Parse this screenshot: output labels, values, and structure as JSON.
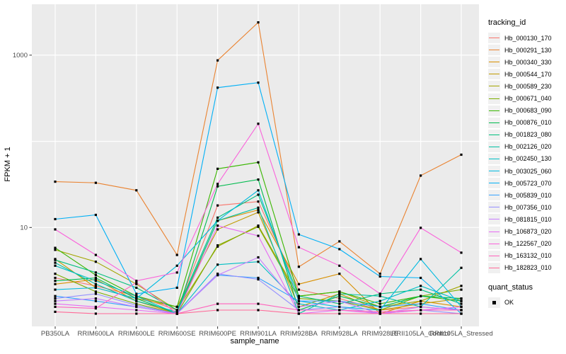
{
  "colors": {
    "panel_bg": "#EBEBEB",
    "grid": "#FFFFFF",
    "tick_text": "#4D4D4D",
    "tick_mark": "#333333",
    "point": "#000000"
  },
  "chart_data": {
    "type": "line",
    "title": "",
    "xlabel": "sample_name",
    "ylabel": "FPKM + 1",
    "y_scale": "log10",
    "ylim": [
      1,
      2600
    ],
    "grid": "on",
    "legend_position": "right",
    "y_tick_labels": [
      "1000",
      "10"
    ],
    "y_tick_values": [
      1000,
      10
    ],
    "y_gridline_values": [
      10,
      100,
      1000
    ],
    "legend_title": "tracking_id",
    "quant_legend": {
      "title": "quant_status",
      "items": [
        {
          "label": "OK"
        }
      ]
    },
    "categories": [
      "PB350LA",
      "RRIM600LA",
      "RRIM600LE",
      "RRIM600SE",
      "RRIM600PE",
      "RRIM901LA",
      "RRIM928BA",
      "RRIM928LA",
      "RRIM928LE",
      "RRII105LA_Control",
      "RRII105LA_Stressed"
    ],
    "series": [
      {
        "name": "Hb_000130_170",
        "color": "#F8766D",
        "values": [
          2.6,
          2.1,
          1.6,
          1.1,
          18,
          20,
          1.9,
          1.5,
          1.1,
          1.2,
          1.1
        ]
      },
      {
        "name": "Hb_000291_130",
        "color": "#EA8331",
        "values": [
          34,
          33,
          27,
          4.8,
          870,
          2400,
          3.5,
          6.9,
          2.9,
          40,
          70
        ]
      },
      {
        "name": "Hb_000340_330",
        "color": "#D89000",
        "values": [
          2.2,
          2.5,
          1.4,
          1.0,
          12,
          16,
          2.2,
          2.9,
          1.0,
          1.4,
          1.2
        ]
      },
      {
        "name": "Hb_000544_170",
        "color": "#C09B00",
        "values": [
          4.3,
          2.0,
          1.5,
          1.2,
          9.5,
          15,
          1.2,
          1.7,
          1.1,
          1.3,
          1.5
        ]
      },
      {
        "name": "Hb_000589_230",
        "color": "#A3A500",
        "values": [
          5.5,
          4.0,
          2.2,
          1.1,
          6.0,
          10.5,
          1.6,
          1.8,
          1.2,
          1.4,
          2.1
        ]
      },
      {
        "name": "Hb_000671_040",
        "color": "#7CAE00",
        "values": [
          2.9,
          1.8,
          1.3,
          1.0,
          6.2,
          10.2,
          1.5,
          1.4,
          1.1,
          1.6,
          1.9
        ]
      },
      {
        "name": "Hb_000683_090",
        "color": "#39B600",
        "values": [
          5.8,
          2.8,
          1.6,
          1.2,
          48,
          57,
          1.6,
          1.8,
          1.3,
          1.6,
          1.4
        ]
      },
      {
        "name": "Hb_000876_010",
        "color": "#00BB4E",
        "values": [
          2.4,
          2.6,
          1.5,
          1.0,
          30,
          36,
          1.1,
          1.6,
          1.2,
          1.6,
          1.5
        ]
      },
      {
        "name": "Hb_001823_080",
        "color": "#00BF7D",
        "values": [
          4.2,
          3.0,
          2.0,
          1.1,
          13,
          24,
          1.6,
          1.3,
          1.7,
          1.9,
          1.3
        ]
      },
      {
        "name": "Hb_002126_020",
        "color": "#00C1A3",
        "values": [
          3.9,
          2.2,
          1.4,
          1.05,
          12,
          17,
          1.0,
          1.7,
          1.6,
          1.2,
          3.4
        ]
      },
      {
        "name": "Hb_002450_130",
        "color": "#00BFC4",
        "values": [
          3.6,
          2.4,
          1.6,
          1.0,
          3.7,
          4.0,
          1.3,
          1.1,
          1.4,
          2.1,
          1.4
        ]
      },
      {
        "name": "Hb_003025_060",
        "color": "#00BAE0",
        "values": [
          1.9,
          2.0,
          1.5,
          3.6,
          12,
          27,
          1.4,
          1.2,
          1.1,
          4.3,
          1.2
        ]
      },
      {
        "name": "Hb_005723_070",
        "color": "#00B0F6",
        "values": [
          12.5,
          14,
          1.7,
          2.0,
          420,
          480,
          8.3,
          5.6,
          2.7,
          2.6,
          1.0
        ]
      },
      {
        "name": "Hb_005839_010",
        "color": "#35A2FF",
        "values": [
          1.6,
          1.4,
          1.2,
          1.0,
          2.8,
          2.6,
          1.4,
          1.4,
          1.2,
          1.3,
          1.1
        ]
      },
      {
        "name": "Hb_007356_010",
        "color": "#9590FF",
        "values": [
          1.5,
          1.7,
          1.25,
          1.0,
          2.9,
          2.5,
          1.1,
          1.2,
          1.0,
          1.1,
          1.0
        ]
      },
      {
        "name": "Hb_081815_010",
        "color": "#C77CFF",
        "values": [
          1.4,
          1.5,
          1.2,
          1.0,
          2.8,
          4.5,
          1.2,
          1.4,
          1.0,
          1.2,
          1.1
        ]
      },
      {
        "name": "Hb_106873_020",
        "color": "#E76BF3",
        "values": [
          1.3,
          1.2,
          1.1,
          1.0,
          10.5,
          8.0,
          1.0,
          1.1,
          1.0,
          1.1,
          1.2
        ]
      },
      {
        "name": "Hb_122567_020",
        "color": "#FA62DB",
        "values": [
          9.5,
          4.8,
          2.4,
          3.0,
          32,
          160,
          5.9,
          3.6,
          1.7,
          9.9,
          5.1
        ]
      },
      {
        "name": "Hb_163132_010",
        "color": "#FF62BC",
        "values": [
          1.2,
          1.15,
          2.3,
          1.0,
          1.3,
          1.3,
          1.1,
          1.1,
          1.05,
          1.1,
          1.1
        ]
      },
      {
        "name": "Hb_182823_010",
        "color": "#FF6A98",
        "values": [
          1.05,
          1.0,
          1.0,
          1.0,
          1.1,
          1.1,
          1.0,
          1.0,
          1.0,
          1.0,
          1.0
        ]
      }
    ]
  }
}
